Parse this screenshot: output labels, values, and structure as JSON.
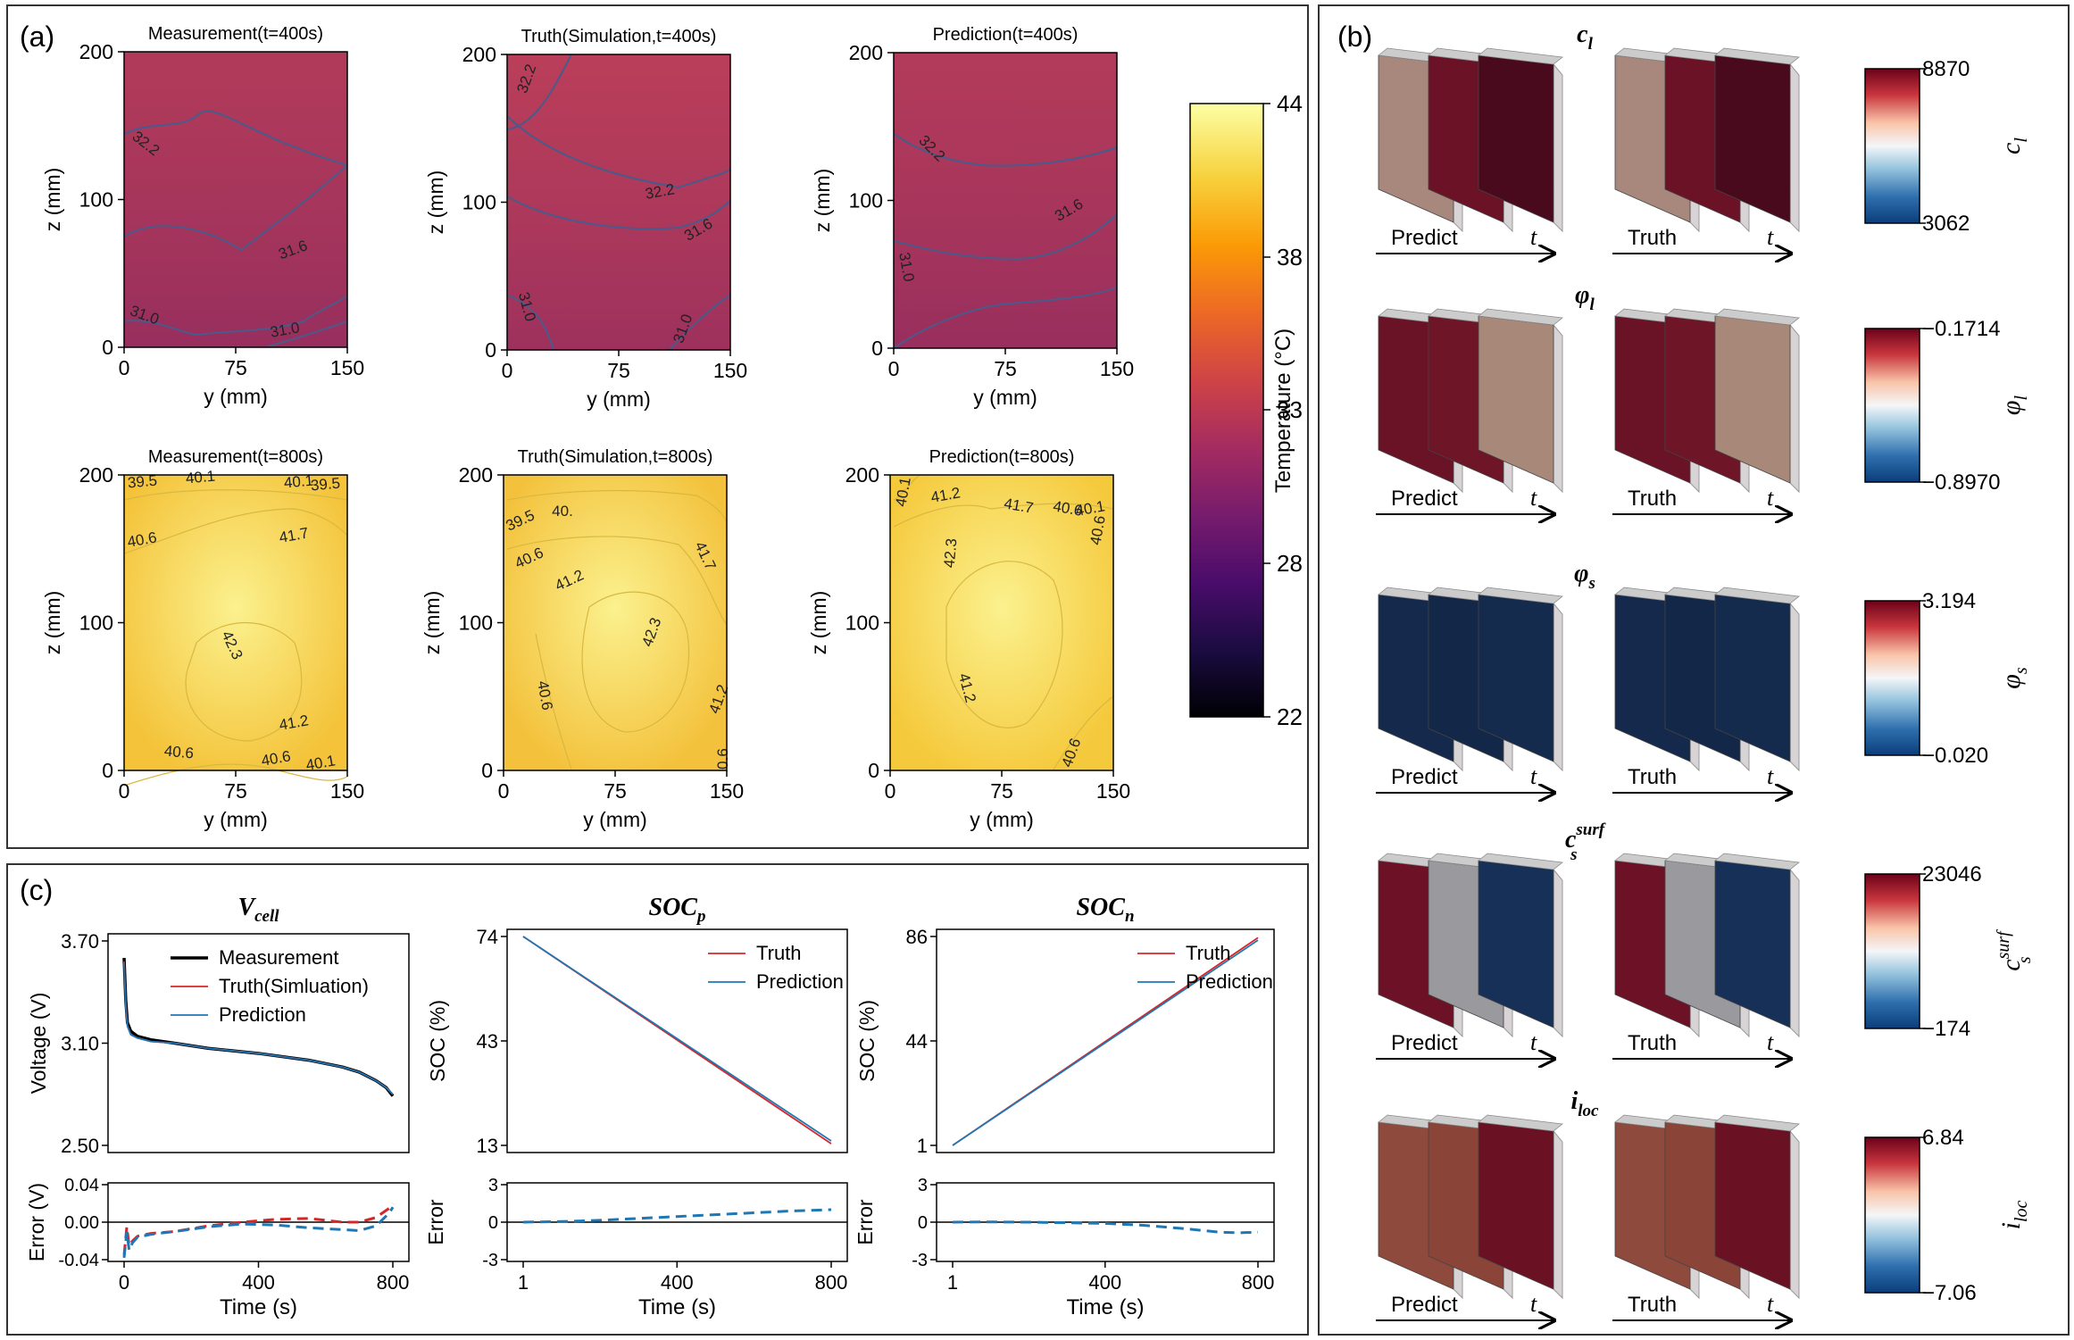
{
  "panel_labels": {
    "a": "(a)",
    "b": "(b)",
    "c": "(c)"
  },
  "colors": {
    "inferno": [
      "#000004",
      "#1b0c41",
      "#4a0c6b",
      "#781c6d",
      "#a52c60",
      "#cf4446",
      "#ed6925",
      "#fb9b06",
      "#f7d13d",
      "#fcffa4"
    ],
    "rdbu": [
      "#0b3d7a",
      "#2f6fae",
      "#93c2dd",
      "#f4f6f8",
      "#f9c4a9",
      "#c9363e",
      "#6b0219"
    ],
    "truth": "#d62728",
    "prediction": "#1f77b4",
    "measurement": "#000000"
  },
  "temperature_colorbar": {
    "label": "Temperature (°C)",
    "ticks": [
      "44",
      "38",
      "33",
      "28",
      "22"
    ],
    "min": 22,
    "max": 44
  },
  "heatmaps": [
    {
      "title": "Measurement(t=400s)",
      "fill": "#a5345c",
      "contours": [
        "32.2",
        "31.6",
        "31.0",
        "31.0"
      ]
    },
    {
      "title": "Truth(Simulation,t=400s)",
      "fill": "#b33a5b",
      "contours": [
        "32.2",
        "32.2",
        "31.6",
        "31.0",
        "31.0"
      ]
    },
    {
      "title": "Prediction(t=400s)",
      "fill": "#a8345c",
      "contours": [
        "32.2",
        "31.6",
        "31.0"
      ]
    },
    {
      "title": "Measurement(t=800s)",
      "fill": "#f4c33a",
      "contours": [
        "39.5",
        "40.1",
        "40.1",
        "39.5",
        "40.6",
        "41.7",
        "42.3",
        "41.2",
        "40.6",
        "40.6",
        "40.1"
      ]
    },
    {
      "title": "Truth(Simulation,t=800s)",
      "fill": "#f3c13b",
      "contours": [
        "39.5",
        "40.",
        "40.6",
        "41.2",
        "41.7",
        "42.3",
        "41.2",
        "40.6",
        "0.6"
      ]
    },
    {
      "title": "Prediction(t=800s)",
      "fill": "#f5c93c",
      "contours": [
        "40.1",
        "41.2",
        "41.7",
        "40.6",
        "40.1",
        "40.6",
        "42.3",
        "41.2",
        "40.6"
      ]
    }
  ],
  "heatmap_axes": {
    "xlabel": "y (mm)",
    "ylabel": "z (mm)",
    "xticks": [
      "0",
      "75",
      "150"
    ],
    "yticks": [
      "200",
      "100",
      "0"
    ]
  },
  "fields_3d": [
    {
      "name": "c",
      "sub": "l",
      "sup": "",
      "cbar_max": "8870",
      "cbar_min": "3062",
      "predict_label": "Predict",
      "truth_label": "Truth",
      "t_label": "t",
      "slabs": [
        "#a8877c",
        "#6b1227",
        "#4a0a1d"
      ]
    },
    {
      "name": "φ",
      "sub": "l",
      "sup": "",
      "cbar_max": "−0.1714",
      "cbar_min": "−0.8970",
      "predict_label": "Predict",
      "truth_label": "Truth",
      "t_label": "t",
      "slabs": [
        "#6a1326",
        "#6e1528",
        "#a88878"
      ]
    },
    {
      "name": "φ",
      "sub": "s",
      "sup": "",
      "cbar_max": "3.194",
      "cbar_min": "−0.020",
      "predict_label": "Predict",
      "truth_label": "Truth",
      "t_label": "t",
      "slabs": [
        "#14294b",
        "#132848",
        "#152b4d"
      ]
    },
    {
      "name": "c",
      "sub": "s",
      "sup": "surf",
      "cbar_max": "23046",
      "cbar_min": "−174",
      "predict_label": "Predict",
      "truth_label": "Truth",
      "t_label": "t",
      "slabs": [
        "#6d1226",
        "#9a9a9e",
        "#163057"
      ]
    },
    {
      "name": "i",
      "sub": "loc",
      "sup": "",
      "cbar_max": "6.84",
      "cbar_min": "−7.06",
      "predict_label": "Predict",
      "truth_label": "Truth",
      "t_label": "t",
      "slabs": [
        "#8f4a3e",
        "#8a4438",
        "#6a1224"
      ]
    }
  ],
  "chart_data": [
    {
      "type": "line",
      "title_main": "V",
      "title_sub": "cell",
      "xlabel": "Time (s)",
      "ylabel": "Voltage (V)",
      "xlim": [
        0,
        800
      ],
      "ylim": [
        2.5,
        3.7
      ],
      "yticks": [
        "3.70",
        "3.10",
        "2.50"
      ],
      "xticks": [
        "0",
        "400",
        "800"
      ],
      "legend": [
        "Measurement",
        "Truth(Simluation)",
        "Prediction"
      ],
      "x": [
        0,
        5,
        10,
        20,
        40,
        80,
        150,
        250,
        400,
        550,
        650,
        700,
        750,
        780,
        800
      ],
      "series": [
        {
          "name": "Measurement",
          "values": [
            3.6,
            3.35,
            3.22,
            3.17,
            3.14,
            3.12,
            3.1,
            3.07,
            3.04,
            3.0,
            2.96,
            2.93,
            2.88,
            2.84,
            2.79
          ]
        },
        {
          "name": "Truth(Simluation)",
          "values": [
            3.58,
            3.33,
            3.2,
            3.15,
            3.13,
            3.11,
            3.1,
            3.07,
            3.04,
            3.0,
            2.96,
            2.93,
            2.88,
            2.84,
            2.8
          ]
        },
        {
          "name": "Prediction",
          "values": [
            3.57,
            3.32,
            3.2,
            3.15,
            3.13,
            3.11,
            3.1,
            3.07,
            3.04,
            3.0,
            2.96,
            2.93,
            2.88,
            2.84,
            2.8
          ]
        }
      ],
      "error": {
        "ylabel": "Error (V)",
        "ylim": [
          -0.04,
          0.04
        ],
        "yticks": [
          "0.04",
          "0.00",
          "-0.04"
        ],
        "x": [
          0,
          8,
          15,
          25,
          40,
          80,
          150,
          250,
          350,
          450,
          550,
          650,
          700,
          750,
          790,
          800
        ],
        "series": [
          {
            "name": "Truth(Simluation)",
            "values": [
              -0.035,
              -0.005,
              -0.025,
              -0.02,
              -0.015,
              -0.012,
              -0.01,
              -0.004,
              0.0,
              0.003,
              0.004,
              0.0,
              0.0,
              0.005,
              0.015,
              0.02
            ]
          },
          {
            "name": "Prediction",
            "values": [
              -0.038,
              -0.01,
              -0.03,
              -0.022,
              -0.016,
              -0.013,
              -0.01,
              -0.005,
              -0.002,
              -0.003,
              -0.006,
              -0.008,
              -0.009,
              -0.004,
              0.01,
              0.016
            ]
          }
        ]
      }
    },
    {
      "type": "line",
      "title_main": "SOC",
      "title_sub": "p",
      "xlabel": "Time (s)",
      "ylabel": "SOC (%)",
      "xlim": [
        1,
        800
      ],
      "ylim": [
        13,
        74
      ],
      "yticks": [
        "74",
        "43",
        "13"
      ],
      "xticks": [
        "1",
        "400",
        "800"
      ],
      "legend": [
        "Truth",
        "Prediction"
      ],
      "x": [
        1,
        800
      ],
      "series": [
        {
          "name": "Truth",
          "values": [
            74,
            13.5
          ]
        },
        {
          "name": "Prediction",
          "values": [
            74,
            14.3
          ]
        }
      ],
      "error": {
        "ylabel": "Error",
        "ylim": [
          -3,
          3
        ],
        "yticks": [
          "3",
          "0",
          "-3"
        ],
        "x": [
          1,
          100,
          200,
          300,
          400,
          500,
          600,
          700,
          800
        ],
        "series": [
          {
            "name": "Prediction",
            "values": [
              0,
              0.05,
              0.15,
              0.3,
              0.45,
              0.6,
              0.75,
              0.9,
              1.0
            ]
          }
        ]
      }
    },
    {
      "type": "line",
      "title_main": "SOC",
      "title_sub": "n",
      "xlabel": "Time (s)",
      "ylabel": "SOC (%)",
      "xlim": [
        1,
        800
      ],
      "ylim": [
        1,
        86
      ],
      "yticks": [
        "86",
        "44",
        "1"
      ],
      "xticks": [
        "1",
        "400",
        "800"
      ],
      "legend": [
        "Truth",
        "Prediction"
      ],
      "x": [
        1,
        800
      ],
      "series": [
        {
          "name": "Truth",
          "values": [
            1,
            85.5
          ]
        },
        {
          "name": "Prediction",
          "values": [
            1,
            84.5
          ]
        }
      ],
      "error": {
        "ylabel": "Error",
        "ylim": [
          -3,
          3
        ],
        "yticks": [
          "3",
          "0",
          "-3"
        ],
        "x": [
          1,
          100,
          200,
          300,
          400,
          500,
          600,
          650,
          700,
          750,
          800
        ],
        "series": [
          {
            "name": "Prediction",
            "values": [
              0,
              0.02,
              0.0,
              -0.05,
              -0.1,
              -0.25,
              -0.5,
              -0.65,
              -0.8,
              -0.85,
              -0.8
            ]
          }
        ]
      }
    }
  ]
}
